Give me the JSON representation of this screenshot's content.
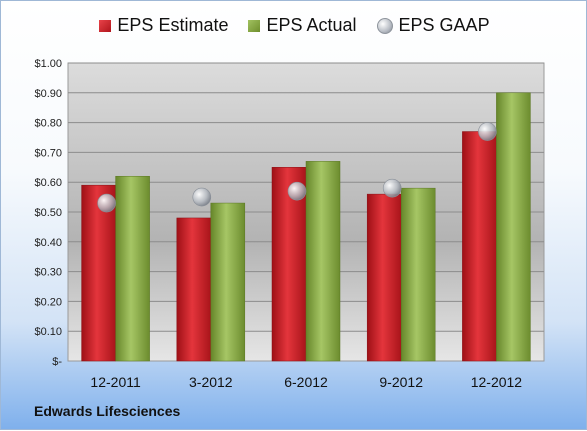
{
  "company": "Edwards Lifesciences",
  "colors": {
    "estimate": "#c8191f",
    "actual": "#86a83d",
    "gaap": "#c0c4ca"
  },
  "chart_data": {
    "type": "bar",
    "title": "",
    "categories": [
      "12-2011",
      "3-2012",
      "6-2012",
      "9-2012",
      "12-2012"
    ],
    "series": [
      {
        "name": "EPS Estimate",
        "type": "bar",
        "values": [
          0.59,
          0.48,
          0.65,
          0.56,
          0.77
        ]
      },
      {
        "name": "EPS Actual",
        "type": "bar",
        "values": [
          0.62,
          0.53,
          0.67,
          0.58,
          0.9
        ]
      },
      {
        "name": "EPS GAAP",
        "type": "scatter",
        "values": [
          0.53,
          0.55,
          0.57,
          0.58,
          0.77
        ]
      }
    ],
    "ylim": [
      0,
      1.0
    ],
    "yticks": [
      0,
      0.1,
      0.2,
      0.3,
      0.4,
      0.5,
      0.6,
      0.7,
      0.8,
      0.9,
      1.0
    ],
    "ytick_labels": [
      "$-",
      "$0.10",
      "$0.20",
      "$0.30",
      "$0.40",
      "$0.50",
      "$0.60",
      "$0.70",
      "$0.80",
      "$0.90",
      "$1.00"
    ],
    "grid": true,
    "legend": "top"
  }
}
